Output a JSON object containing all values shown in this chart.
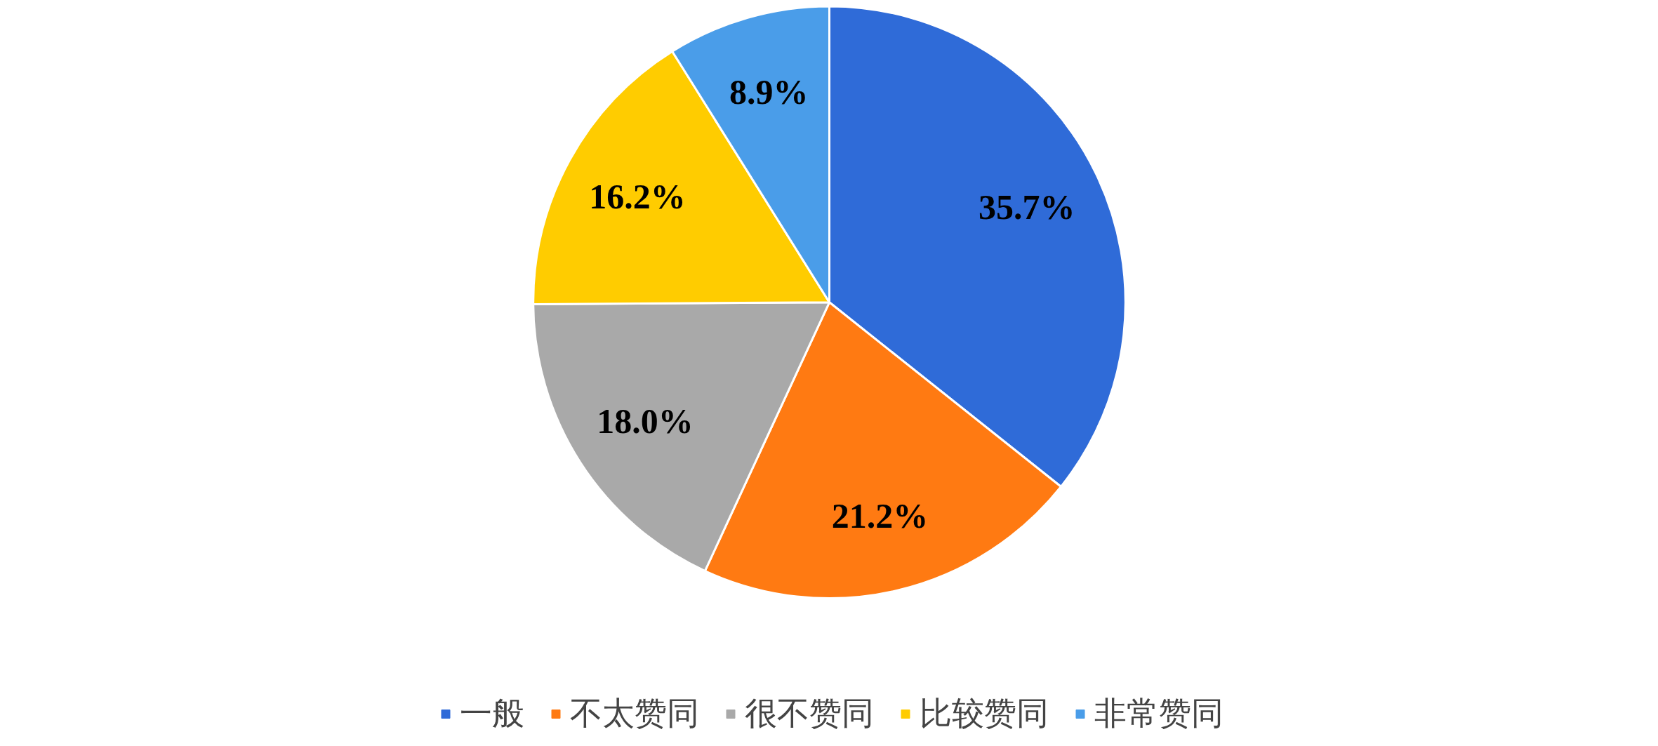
{
  "chart_data": {
    "type": "pie",
    "categories": [
      "一般",
      "不太赞同",
      "很不赞同",
      "比较赞同",
      "非常赞同"
    ],
    "values": [
      35.7,
      21.2,
      18.0,
      16.2,
      8.9
    ],
    "colors": [
      "#2f6bd8",
      "#ff7a12",
      "#a9a9a9",
      "#ffcc00",
      "#4a9de9"
    ],
    "value_labels": [
      "35.7%",
      "21.2%",
      "18.0%",
      "16.2%",
      "8.9%"
    ],
    "legend": "bottom"
  }
}
